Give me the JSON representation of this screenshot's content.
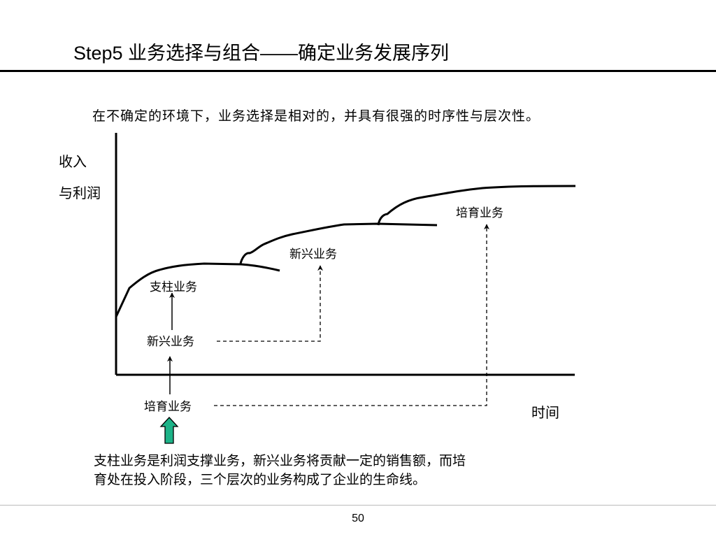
{
  "slide": {
    "title": "Step5 业务选择与组合——确定业务发展序列",
    "intro": "在不确定的环境下，业务选择是相对的，并具有很强的时序性与层次性。",
    "conclusion_lines": [
      "支柱业务是利润支撑业务，新兴业务将贡献一定的销售额，而培",
      "育处在投入阶段，三个层次的业务构成了企业的生命线。"
    ],
    "page_number": "50"
  },
  "diagram": {
    "y_axis_label_lines": [
      "收入",
      "与利润"
    ],
    "x_axis_label": "时间",
    "curve_labels": {
      "pillar": "支柱业务",
      "emerging": "新兴业务",
      "incubating": "培育业务"
    },
    "lifecycle_labels": {
      "emerging": "新兴业务",
      "incubating": "培育业务"
    },
    "start_arrow_color": "#1db388"
  }
}
